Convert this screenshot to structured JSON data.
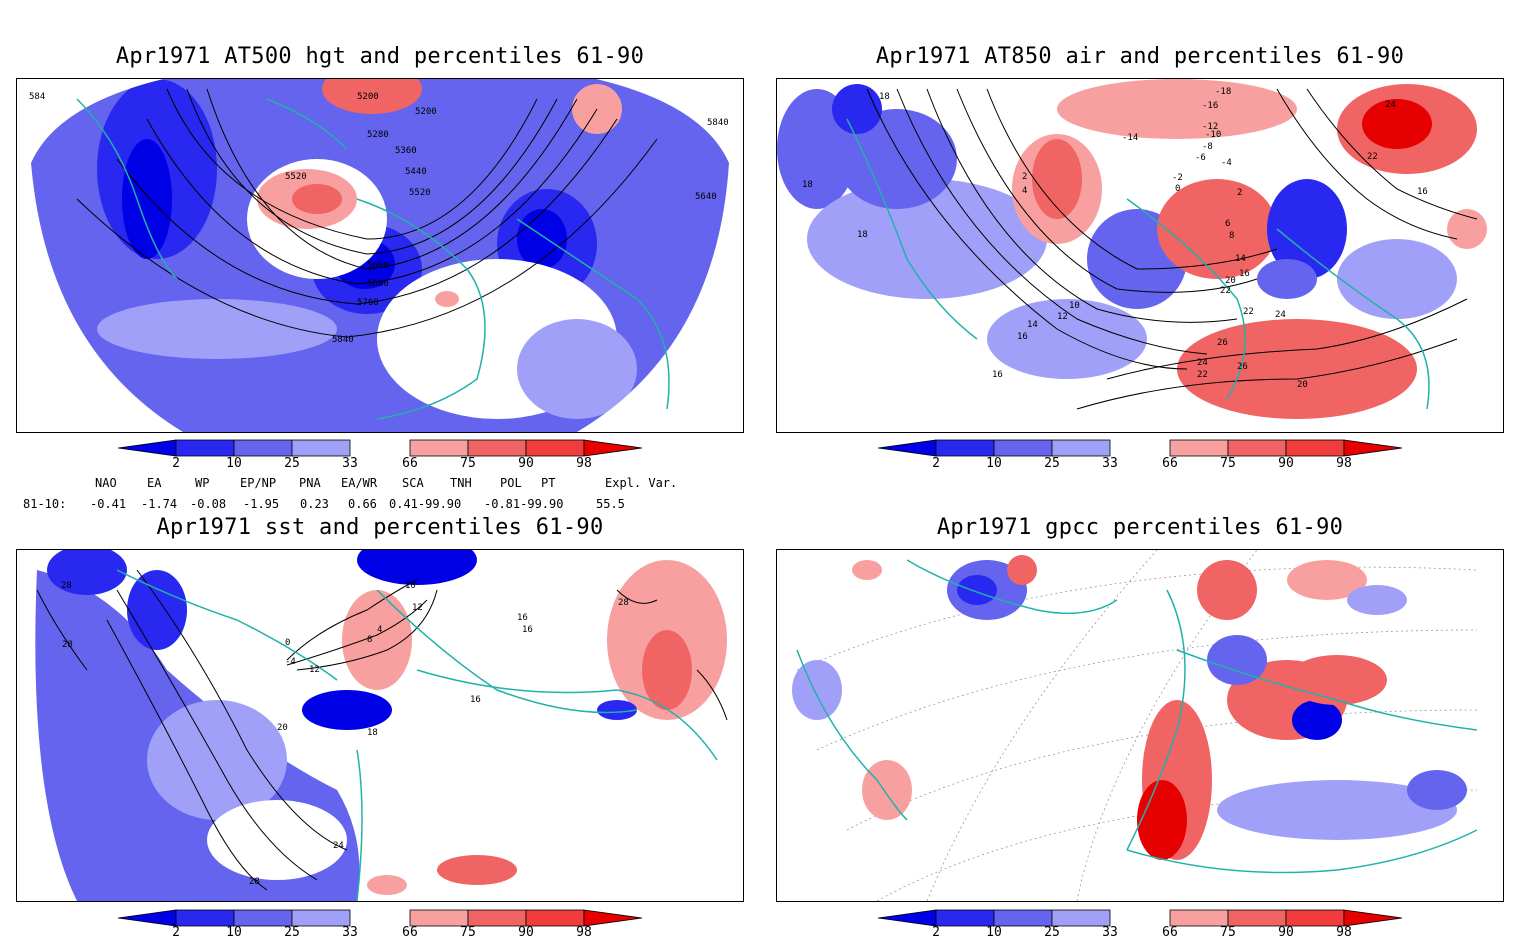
{
  "panels": {
    "hgt": {
      "title": "Apr1971 AT500 hgt and percentiles 61-90",
      "contour_labels": [
        "5200",
        "5200",
        "5280",
        "5360",
        "5440",
        "5520",
        "5520",
        "5600",
        "5680",
        "5760",
        "5840",
        "5840",
        "5640",
        "584"
      ]
    },
    "air": {
      "title": "Apr1971 AT850 air and percentiles 61-90",
      "contour_labels": [
        "18",
        "18",
        "18",
        "16",
        "14",
        "12",
        "10",
        "16",
        "-18",
        "-16",
        "-12",
        "-10",
        "-14",
        "-8",
        "-6",
        "-4",
        "-2",
        "0",
        "2",
        "2",
        "4",
        "6",
        "8",
        "14",
        "16",
        "20",
        "22",
        "22",
        "24",
        "24",
        "26",
        "26",
        "24",
        "22",
        "22",
        "20",
        "16"
      ]
    },
    "sst": {
      "title": "Apr1971 sst and percentiles 61-90",
      "contour_labels": [
        "28",
        "28",
        "28",
        "10",
        "4",
        "8",
        "12",
        "0",
        "-4",
        "18",
        "16",
        "20",
        "24",
        "28",
        "16",
        "12",
        "16"
      ]
    },
    "gpcc": {
      "title": "Apr1971 gpcc percentiles 61-90"
    }
  },
  "colorbar": {
    "ticks": [
      "2",
      "10",
      "25",
      "33",
      "66",
      "75",
      "90",
      "98"
    ],
    "colors": {
      "b1": "#0000e6",
      "b2": "#2828f0",
      "b3": "#6464ee",
      "b4": "#a0a0f8",
      "r4": "#f8a0a0",
      "r3": "#f06464",
      "r2": "#f03c3c",
      "r1": "#e60000"
    }
  },
  "indices": {
    "headers": [
      "NAO",
      "EA",
      "WP",
      "EP/NP",
      "PNA",
      "EA/WR",
      "SCA",
      "TNH",
      "POL",
      "PT",
      "Expl. Var."
    ],
    "row_label": "81-10:",
    "values": [
      "-0.41",
      "-1.74",
      "-0.08",
      "-1.95",
      "0.23",
      "0.66",
      "0.41-99.90",
      "-0.81-99.90",
      "55.5"
    ]
  },
  "colors": {
    "coast": "#20b2aa",
    "contour": "#000000",
    "grid": "#999999"
  }
}
